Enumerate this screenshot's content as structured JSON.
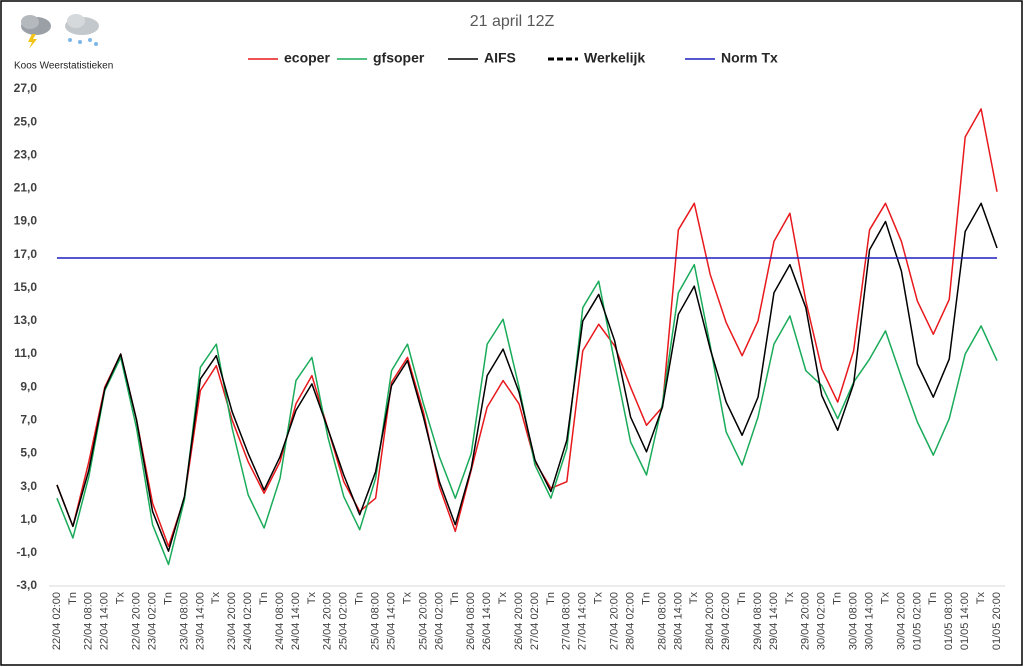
{
  "brand": "Koos Weerstatistieken",
  "chart_data": {
    "type": "line",
    "title": "21 april 12Z",
    "categories": [
      "22/04 02:00",
      "Tn",
      "22/04 08:00",
      "22/04 14:00",
      "Tx",
      "22/04 20:00",
      "23/04 02:00",
      "Tn",
      "23/04 08:00",
      "23/04 14:00",
      "Tx",
      "23/04 20:00",
      "24/04 02:00",
      "Tn",
      "24/04 08:00",
      "24/04 14:00",
      "Tx",
      "24/04 20:00",
      "25/04 02:00",
      "Tn",
      "25/04 08:00",
      "25/04 14:00",
      "Tx",
      "25/04 20:00",
      "26/04 02:00",
      "Tn",
      "26/04 08:00",
      "26/04 14:00",
      "Tx",
      "26/04 20:00",
      "27/04 02:00",
      "Tn",
      "27/04 08:00",
      "27/04 14:00",
      "Tx",
      "27/04 20:00",
      "28/04 02:00",
      "Tn",
      "28/04 08:00",
      "28/04 14:00",
      "Tx",
      "28/04 20:00",
      "29/04 02:00",
      "Tn",
      "29/04 08:00",
      "29/04 14:00",
      "Tx",
      "29/04 20:00",
      "30/04 02:00",
      "Tn",
      "30/04 08:00",
      "30/04 14:00",
      "Tx",
      "30/04 20:00",
      "01/05 02:00",
      "Tn",
      "01/05 08:00",
      "01/05 14:00",
      "Tx",
      "01/05 20:00"
    ],
    "series": [
      {
        "name": "ecoper",
        "color": "#e8191d",
        "dashed": false,
        "values": [
          3.1,
          0.6,
          4.5,
          9.0,
          11.0,
          7.0,
          2.0,
          -0.6,
          2.3,
          8.8,
          10.3,
          7.0,
          4.5,
          2.6,
          4.5,
          8.0,
          9.7,
          6.5,
          3.3,
          1.5,
          2.3,
          9.3,
          10.8,
          7.5,
          3.0,
          0.3,
          4.0,
          7.8,
          9.4,
          8.0,
          4.5,
          2.9,
          3.3,
          11.2,
          12.8,
          11.5,
          9.0,
          6.7,
          7.8,
          18.5,
          20.1,
          15.8,
          12.9,
          10.9,
          13.0,
          17.8,
          19.5,
          14.2,
          10.1,
          8.1,
          11.2,
          18.5,
          20.1,
          17.8,
          14.2,
          12.2,
          14.3,
          24.1,
          25.8,
          20.8
        ]
      },
      {
        "name": "gfsoper",
        "color": "#1aab5a",
        "dashed": false,
        "values": [
          2.3,
          -0.1,
          3.6,
          8.8,
          10.8,
          6.5,
          0.7,
          -1.7,
          2.2,
          10.2,
          11.6,
          6.5,
          2.5,
          0.5,
          3.5,
          9.4,
          10.8,
          6.0,
          2.4,
          0.4,
          3.5,
          10.0,
          11.6,
          8.0,
          4.8,
          2.3,
          5.0,
          11.6,
          13.1,
          9.0,
          4.3,
          2.3,
          5.3,
          13.8,
          15.4,
          10.5,
          5.7,
          3.7,
          8.0,
          14.7,
          16.4,
          11.5,
          6.3,
          4.3,
          7.2,
          11.6,
          13.3,
          10.0,
          9.1,
          7.1,
          9.3,
          10.7,
          12.4,
          9.6,
          6.9,
          4.9,
          7.1,
          11.0,
          12.7,
          10.6
        ]
      },
      {
        "name": "AIFS",
        "color": "#000000",
        "dashed": false,
        "values": [
          3.1,
          0.6,
          4.0,
          8.9,
          11.0,
          7.0,
          1.5,
          -0.9,
          2.4,
          9.5,
          10.9,
          7.5,
          5.0,
          2.8,
          4.8,
          7.6,
          9.2,
          6.5,
          3.7,
          1.3,
          3.9,
          9.1,
          10.6,
          7.2,
          3.3,
          0.7,
          4.1,
          9.7,
          11.3,
          8.7,
          4.6,
          2.7,
          5.8,
          13.0,
          14.6,
          11.8,
          7.2,
          5.1,
          7.8,
          13.4,
          15.1,
          11.3,
          8.1,
          6.1,
          8.4,
          14.7,
          16.4,
          13.8,
          8.5,
          6.4,
          9.2,
          17.3,
          19.0,
          16.0,
          10.4,
          8.4,
          10.7,
          18.4,
          20.1,
          17.4
        ]
      },
      {
        "name": "Werkelijk",
        "color": "#000000",
        "dashed": true,
        "values": [
          null,
          null,
          null,
          null,
          null,
          null,
          null,
          null,
          null,
          null,
          null,
          null,
          null,
          null,
          null,
          null,
          null,
          null,
          null,
          null,
          null,
          null,
          null,
          null,
          null,
          null,
          null,
          null,
          null,
          null,
          null,
          null,
          null,
          null,
          null,
          null,
          null,
          null,
          null,
          null,
          null,
          null,
          null,
          null,
          null,
          null,
          null,
          null,
          null,
          null,
          null,
          null,
          null,
          null,
          null,
          null,
          null,
          null,
          null,
          null
        ]
      },
      {
        "name": "Norm Tx",
        "color": "#1f1fbf",
        "dashed": false,
        "values": [
          16.8,
          16.8,
          16.8,
          16.8,
          16.8,
          16.8,
          16.8,
          16.8,
          16.8,
          16.8,
          16.8,
          16.8,
          16.8,
          16.8,
          16.8,
          16.8,
          16.8,
          16.8,
          16.8,
          16.8,
          16.8,
          16.8,
          16.8,
          16.8,
          16.8,
          16.8,
          16.8,
          16.8,
          16.8,
          16.8,
          16.8,
          16.8,
          16.8,
          16.8,
          16.8,
          16.8,
          16.8,
          16.8,
          16.8,
          16.8,
          16.8,
          16.8,
          16.8,
          16.8,
          16.8,
          16.8,
          16.8,
          16.8,
          16.8,
          16.8,
          16.8,
          16.8,
          16.8,
          16.8,
          16.8,
          16.8,
          16.8,
          16.8,
          16.8,
          16.8
        ]
      }
    ],
    "ylim": [
      -3,
      27
    ],
    "yticks": [
      {
        "value": -3,
        "label": "-3,0"
      },
      {
        "value": -1,
        "label": "-1,0"
      },
      {
        "value": 1,
        "label": "1,0"
      },
      {
        "value": 3,
        "label": "3,0"
      },
      {
        "value": 5,
        "label": "5,0"
      },
      {
        "value": 7,
        "label": "7,0"
      },
      {
        "value": 9,
        "label": "9,0"
      },
      {
        "value": 11,
        "label": "11,0"
      },
      {
        "value": 13,
        "label": "13,0"
      },
      {
        "value": 15,
        "label": "15,0"
      },
      {
        "value": 17,
        "label": "17,0"
      },
      {
        "value": 19,
        "label": "19,0"
      },
      {
        "value": 21,
        "label": "21,0"
      },
      {
        "value": 23,
        "label": "23,0"
      },
      {
        "value": 25,
        "label": "25,0"
      },
      {
        "value": 27,
        "label": "27,0"
      }
    ],
    "grid": false
  }
}
